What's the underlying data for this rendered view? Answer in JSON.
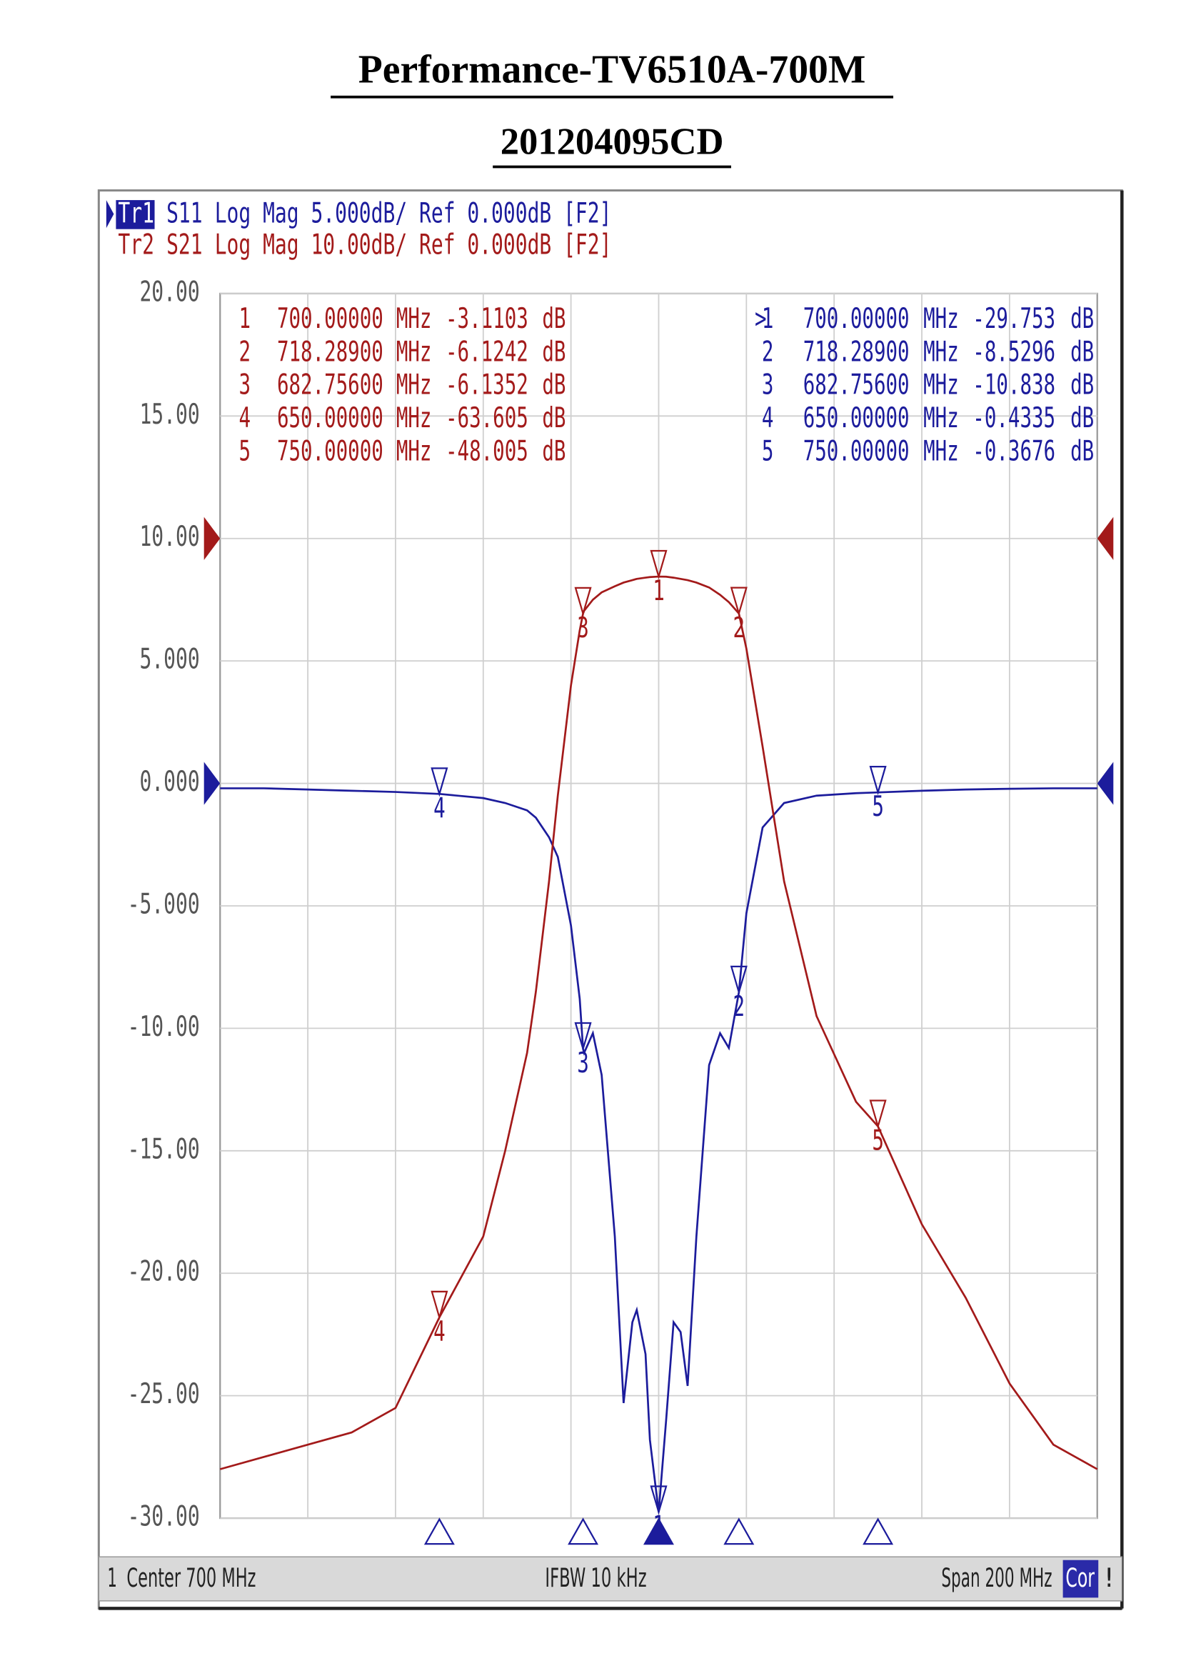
{
  "chart_data": {
    "type": "line",
    "title": "Performance-TV6510A-700M",
    "subtitle": "201204095CD",
    "xlim": [
      600,
      800
    ],
    "ylim": [
      -30,
      20
    ],
    "y2lim": [
      -80,
      20
    ],
    "grid": true,
    "yticks": [
      {
        "value": 20,
        "label": "20.00"
      },
      {
        "value": 15,
        "label": "15.00"
      },
      {
        "value": 10,
        "label": "10.00"
      },
      {
        "value": 5,
        "label": "5.000"
      },
      {
        "value": 0,
        "label": "0.000"
      },
      {
        "value": -5,
        "label": "-5.000"
      },
      {
        "value": -10,
        "label": "-10.00"
      },
      {
        "value": -15,
        "label": "-15.00"
      },
      {
        "value": -20,
        "label": "-20.00"
      },
      {
        "value": -25,
        "label": "-25.00"
      },
      {
        "value": -30,
        "label": "-30.00"
      }
    ],
    "x": [
      600,
      610,
      620,
      630,
      640,
      650,
      660,
      665,
      670,
      672,
      675,
      677,
      680,
      682,
      682.756,
      683,
      685,
      687,
      690,
      692,
      694,
      695,
      697,
      698,
      700,
      701.7,
      703.4,
      705,
      706.6,
      708.6,
      711.5,
      714,
      716,
      718.289,
      720,
      723.7,
      728.6,
      736,
      745,
      750,
      760,
      770,
      780,
      790,
      800
    ],
    "series": [
      {
        "trace": "Tr1",
        "name": "S11",
        "format": "Log Mag 5.000dB/ Ref 0.000dB [F2]",
        "color": "#1c1c9c",
        "axis": "y",
        "values": [
          -0.2,
          -0.2,
          -0.25,
          -0.3,
          -0.35,
          -0.43,
          -0.6,
          -0.8,
          -1.1,
          -1.4,
          -2.2,
          -3.0,
          -5.8,
          -8.8,
          -10.838,
          -11.0,
          -10.2,
          -11.9,
          -18.5,
          -25.3,
          -22,
          -21.5,
          -23.3,
          -26.8,
          -29.753,
          -26,
          -22,
          -22.4,
          -24.6,
          -18.5,
          -11.5,
          -10.2,
          -10.8,
          -8.5296,
          -5.3,
          -1.8,
          -0.8,
          -0.5,
          -0.4,
          -0.3676,
          -0.3,
          -0.25,
          -0.22,
          -0.2,
          -0.2
        ],
        "markers": [
          {
            "prefix": ">",
            "id": "1",
            "freq": {
              "value": 700,
              "label": "700.00000"
            },
            "unit": "MHz",
            "value": -29.753,
            "value_unit": "dB"
          },
          {
            "id": "2",
            "freq": {
              "value": 718.289,
              "label": "718.28900"
            },
            "unit": "MHz",
            "value": -8.5296,
            "value_unit": "dB"
          },
          {
            "id": "3",
            "freq": {
              "value": 682.756,
              "label": "682.75600"
            },
            "unit": "MHz",
            "value": -10.838,
            "value_unit": "dB"
          },
          {
            "id": "4",
            "freq": {
              "value": 650,
              "label": "650.00000"
            },
            "unit": "MHz",
            "value": -0.4335,
            "value_unit": "dB"
          },
          {
            "id": "5",
            "freq": {
              "value": 750,
              "label": "750.00000"
            },
            "unit": "MHz",
            "value": -0.3676,
            "value_unit": "dB"
          }
        ]
      },
      {
        "trace": "Tr2",
        "name": "S21",
        "format": "Log Mag 10.00dB/ Ref 0.000dB [F2]",
        "color": "#a31a1a",
        "axis": "y2",
        "values": [
          -76,
          -75,
          -74,
          -73,
          -71,
          -63.605,
          -57,
          -50,
          -42,
          -37,
          -28,
          -21,
          -12,
          -7.5,
          -6.1352,
          -5.9,
          -5.0,
          -4.4,
          -3.9,
          -3.6,
          -3.4,
          -3.3,
          -3.2,
          -3.15,
          -3.1103,
          -3.12,
          -3.2,
          -3.3,
          -3.4,
          -3.6,
          -4.0,
          -4.6,
          -5.2,
          -6.1242,
          -9,
          -17,
          -28,
          -39,
          -46,
          -48.005,
          -56,
          -62,
          -69,
          -74,
          -76
        ],
        "markers": [
          {
            "id": "1",
            "freq": {
              "value": 700,
              "label": "700.00000"
            },
            "unit": "MHz",
            "value": -3.1103,
            "value_unit": "dB"
          },
          {
            "id": "2",
            "freq": {
              "value": 718.289,
              "label": "718.28900"
            },
            "unit": "MHz",
            "value": -6.1242,
            "value_unit": "dB"
          },
          {
            "id": "3",
            "freq": {
              "value": 682.756,
              "label": "682.75600"
            },
            "unit": "MHz",
            "value": -6.1352,
            "value_unit": "dB"
          },
          {
            "id": "4",
            "freq": {
              "value": 650,
              "label": "650.00000"
            },
            "unit": "MHz",
            "value": -63.605,
            "value_unit": "dB"
          },
          {
            "id": "5",
            "freq": {
              "value": 750,
              "label": "750.00000"
            },
            "unit": "MHz",
            "value": -48.005,
            "value_unit": "dB"
          }
        ]
      }
    ],
    "footer": {
      "channel": "1",
      "center": "Center 700 MHz",
      "ifbw": "IFBW 10 kHz",
      "span": "Span 200 MHz",
      "correction": "Cor",
      "status": "!"
    }
  }
}
